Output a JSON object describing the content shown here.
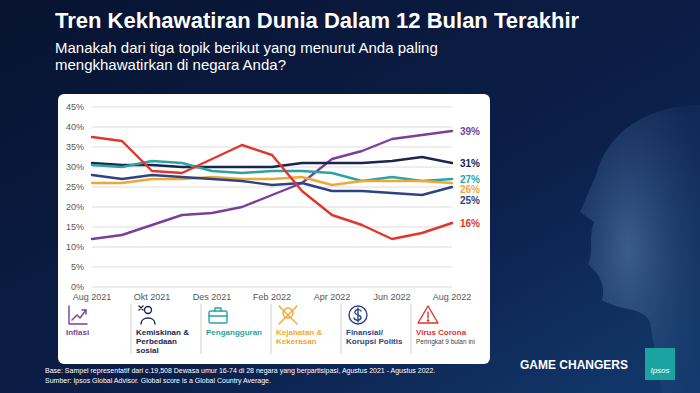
{
  "chart_data": {
    "type": "line",
    "title": "Tren Kekhawatiran Dunia Dalam 12 Bulan Terakhir",
    "subtitle": "Manakah dari tiga topik berikut yang menurut Anda paling mengkhawatirkan di negara Anda?",
    "categories": [
      "Aug 2021",
      null,
      "Okt 2021",
      null,
      "Des 2021",
      null,
      "Feb 2022",
      null,
      "Apr 2022",
      null,
      "Jun 2022",
      null,
      "Aug 2022"
    ],
    "series": [
      {
        "name": "Inflasi",
        "color": "#7b3f98",
        "end_label": "39%",
        "values": [
          12,
          13,
          15.5,
          18,
          18.5,
          20,
          23,
          26,
          32,
          34,
          37,
          38,
          39
        ]
      },
      {
        "name": "Kemiskinan & Perbedaan sosial",
        "color": "#1a2550",
        "end_label": "31%",
        "values": [
          31,
          30.5,
          30.5,
          30,
          30,
          30,
          30,
          31,
          31,
          31,
          31.5,
          32.5,
          31
        ]
      },
      {
        "name": "Pengangguran",
        "color": "#2ba3a0",
        "end_label": "27%",
        "values": [
          30.5,
          30,
          31.5,
          31,
          29,
          28.5,
          29,
          29,
          28.5,
          26.5,
          27.5,
          26.5,
          27
        ]
      },
      {
        "name": "Kejahatan & Kekerasan",
        "color": "#f0a835",
        "end_label": "26%",
        "values": [
          26,
          26,
          27,
          27,
          27.5,
          27,
          27,
          27.5,
          25.5,
          26.5,
          26.5,
          26.5,
          26
        ]
      },
      {
        "name": "Finansial/ Korupsi Politis",
        "color": "#2e4383",
        "end_label": "25%",
        "values": [
          28,
          27,
          28,
          27.5,
          27,
          26.5,
          25.5,
          26,
          24,
          24,
          23.5,
          23,
          25
        ]
      },
      {
        "name": "Virus Corona",
        "color": "#e2352c",
        "end_label": "16%",
        "note": "Peringkat 9 bulan ini",
        "values": [
          37.5,
          36.5,
          29,
          28.5,
          32,
          35.5,
          33,
          24,
          18,
          15.5,
          12,
          13.5,
          16
        ]
      }
    ],
    "ylim": [
      0,
      45
    ],
    "yticks": [
      {
        "value": 0,
        "label": "0%"
      },
      {
        "value": 5,
        "label": "5%"
      },
      {
        "value": 10,
        "label": "10%"
      },
      {
        "value": 15,
        "label": "15%"
      },
      {
        "value": 20,
        "label": "20%"
      },
      {
        "value": 25,
        "label": "25%"
      },
      {
        "value": 30,
        "label": "30%"
      },
      {
        "value": 35,
        "label": "35%"
      },
      {
        "value": 40,
        "label": "40%"
      },
      {
        "value": 45,
        "label": "45%"
      }
    ],
    "grid": true,
    "legend": "bottom",
    "notes": [
      "Base: Sampel representatif dari c.19,508 Dewasa umur 16-74 di 28 negara yang berpartisipasi, Agustus 2021 - Agustus 2022.",
      "Sumber: Ipsos Global Advisor. Global score is a Global Country Average."
    ],
    "brand": {
      "tagline": "GAME CHANGERS",
      "logo": "Ipsos"
    }
  }
}
